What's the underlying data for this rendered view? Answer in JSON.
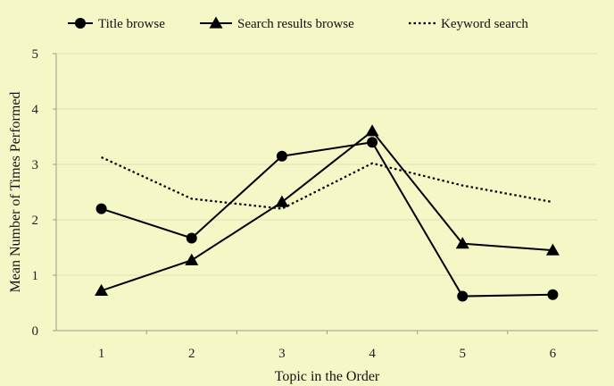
{
  "chart_data": {
    "type": "line",
    "title": "",
    "xlabel": "Topic in the Order",
    "ylabel": "Mean Number of Times Performed",
    "categories": [
      "1",
      "2",
      "3",
      "4",
      "5",
      "6"
    ],
    "x": [
      1,
      2,
      3,
      4,
      5,
      6
    ],
    "ylim": [
      0,
      5
    ],
    "yticks": [
      "0",
      "1",
      "2",
      "3",
      "4",
      "5"
    ],
    "grid": "horizontal",
    "legend": "top",
    "series": [
      {
        "name": "Title browse",
        "marker": "circle",
        "style": "solid",
        "color": "#000000",
        "values": [
          2.2,
          1.67,
          3.15,
          3.4,
          0.62,
          0.65
        ]
      },
      {
        "name": "Search results browse",
        "marker": "triangle",
        "style": "solid",
        "color": "#000000",
        "values": [
          0.72,
          1.27,
          2.32,
          3.6,
          1.57,
          1.45
        ]
      },
      {
        "name": "Keyword search",
        "marker": "none",
        "style": "dotted",
        "color": "#000000",
        "values": [
          3.13,
          2.38,
          2.2,
          3.02,
          2.62,
          2.32
        ]
      }
    ]
  }
}
